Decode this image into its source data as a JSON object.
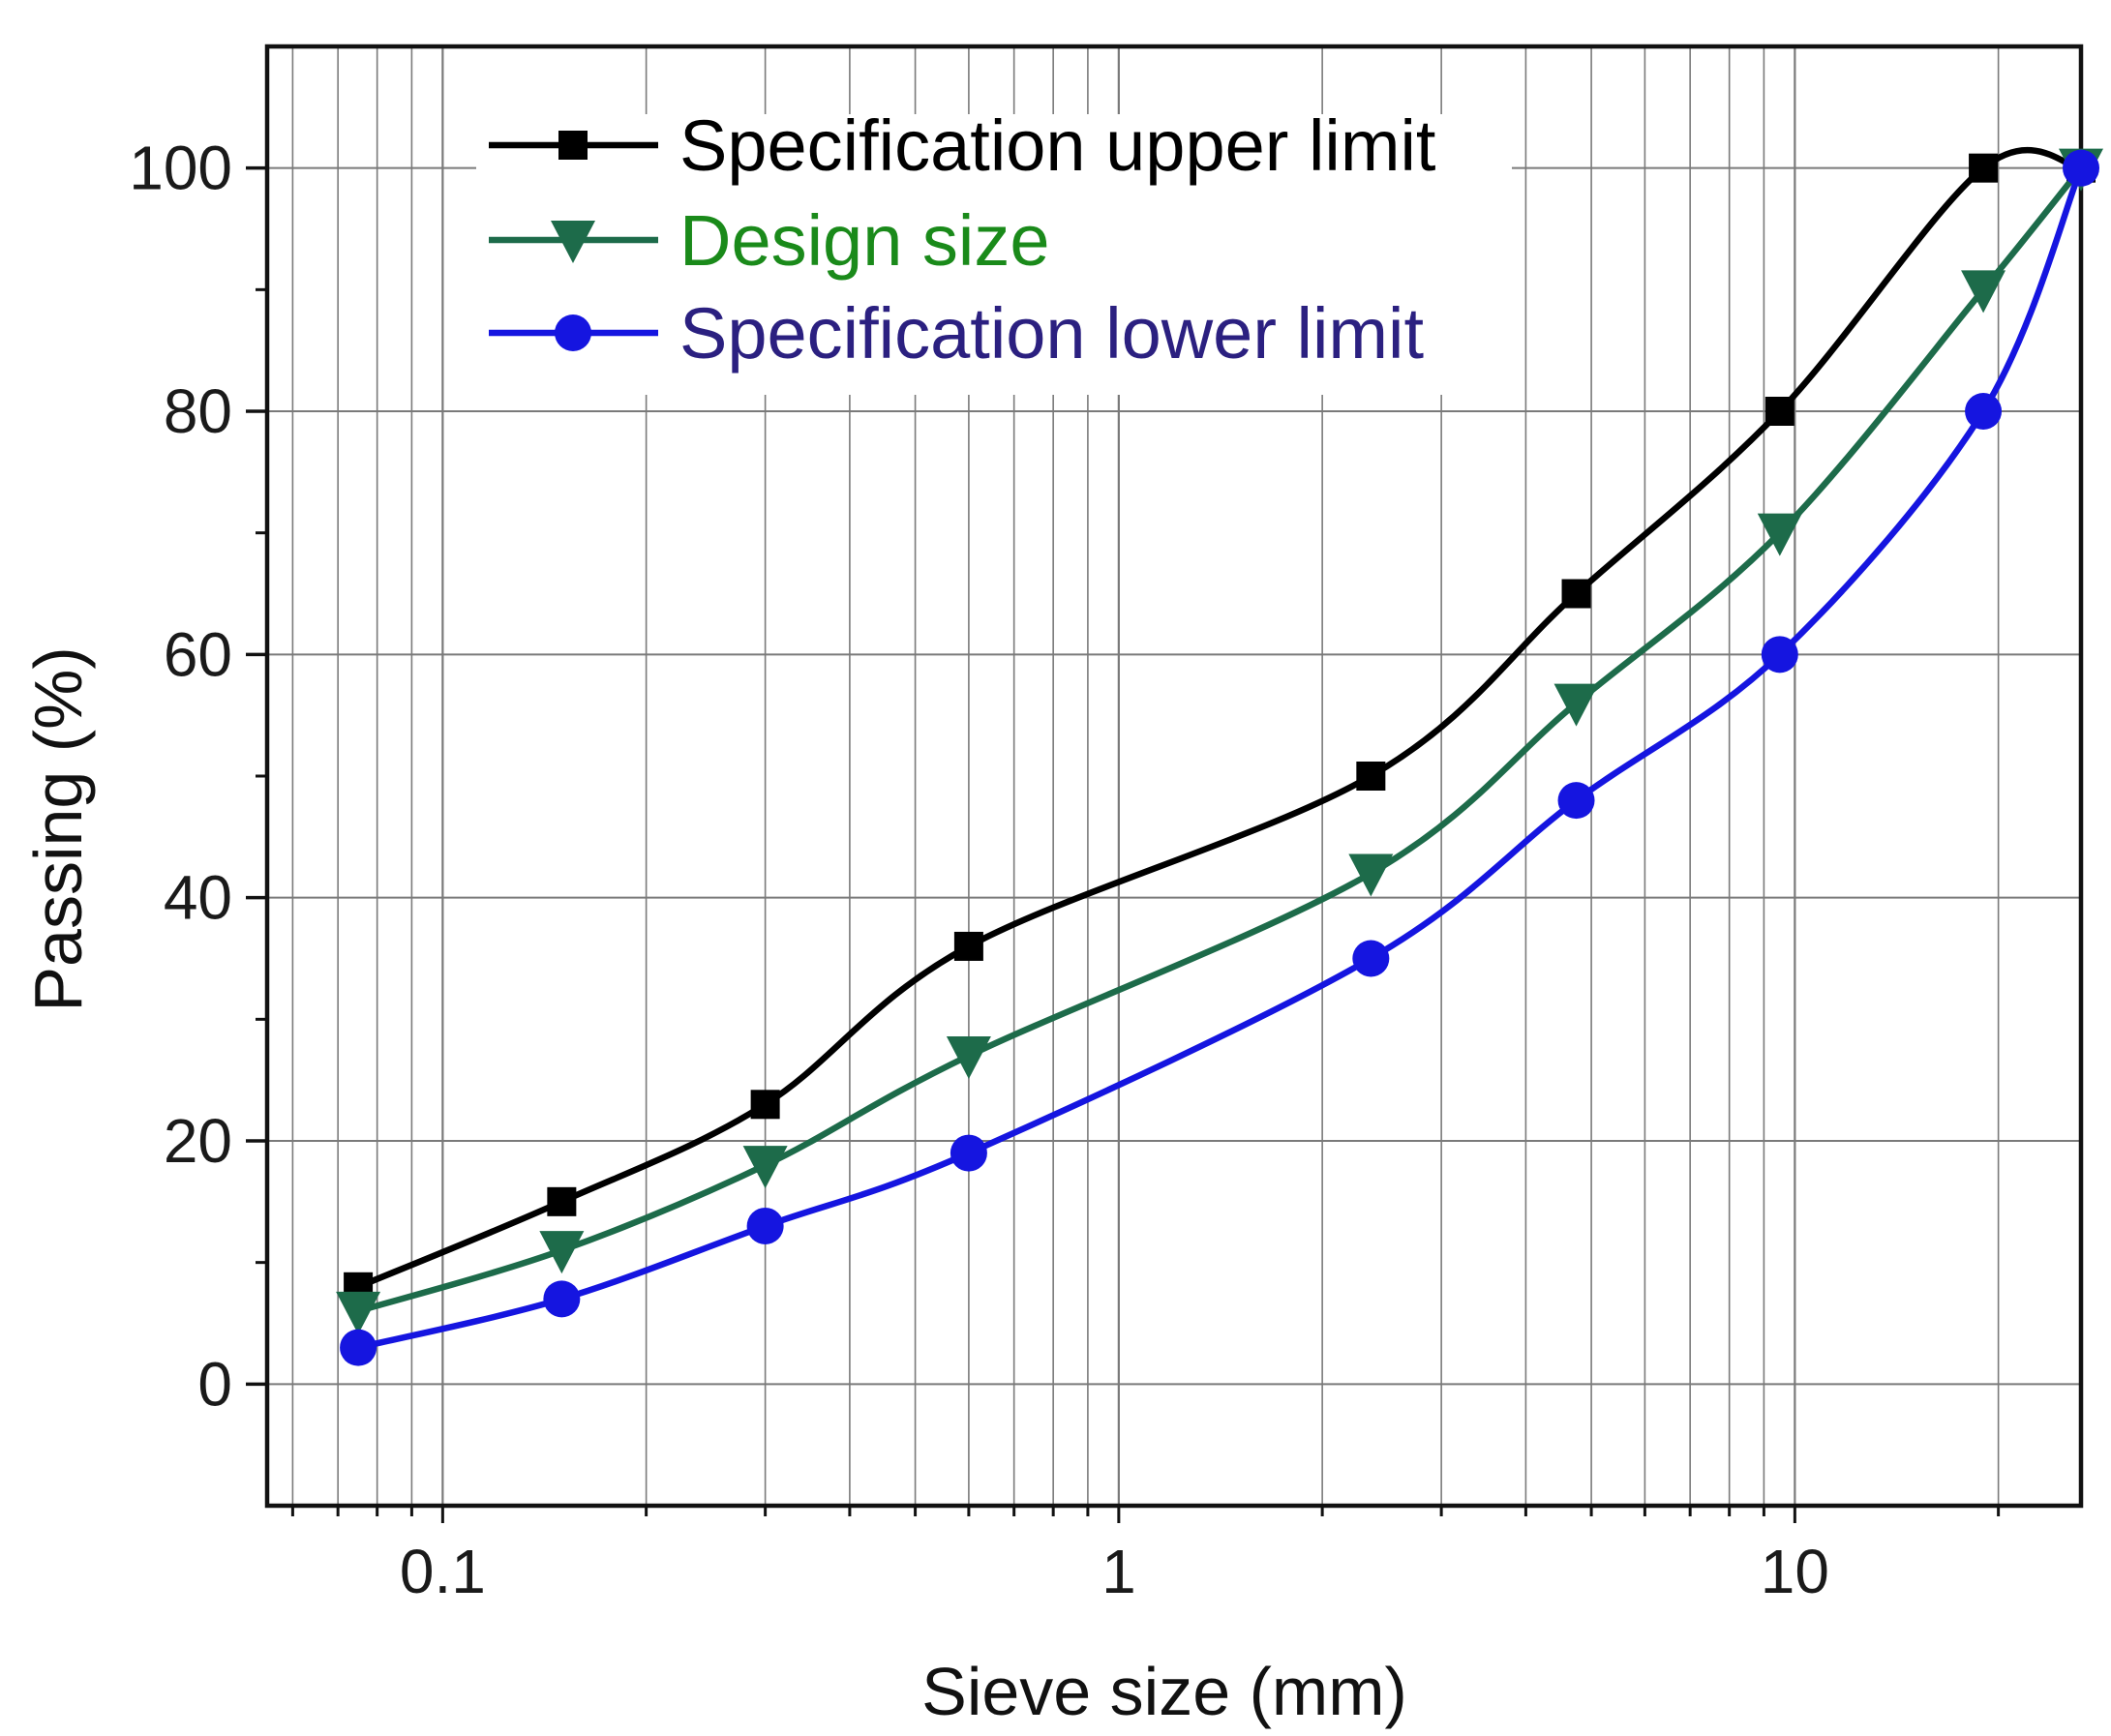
{
  "chart_data": {
    "type": "line",
    "title": "",
    "xlabel": "Sieve size (mm)",
    "ylabel": "Passing (%)",
    "xscale": "log",
    "xlim": [
      0.055,
      26.5
    ],
    "ylim": [
      -10,
      110
    ],
    "grid": true,
    "x_ticks": [
      {
        "value": 0.1,
        "label": "0.1"
      },
      {
        "value": 1,
        "label": "1"
      },
      {
        "value": 10,
        "label": "10"
      }
    ],
    "y_ticks": [
      {
        "value": 0,
        "label": "0"
      },
      {
        "value": 20,
        "label": "20"
      },
      {
        "value": 40,
        "label": "40"
      },
      {
        "value": 60,
        "label": "60"
      },
      {
        "value": 80,
        "label": "80"
      },
      {
        "value": 100,
        "label": "100"
      }
    ],
    "y_minor_ticks": [
      10,
      30,
      50,
      70,
      90
    ],
    "legend_position": "top-left",
    "x": [
      0.075,
      0.15,
      0.3,
      0.6,
      2.36,
      4.75,
      9.5,
      19,
      26.5
    ],
    "series": [
      {
        "name": "Specification upper limit",
        "color": "#000000",
        "marker": "square",
        "values": [
          8,
          15,
          23,
          36,
          50,
          65,
          80,
          100,
          100
        ]
      },
      {
        "name": " Design size",
        "color": "#1d6b4a",
        "text_color": "#1a8a1a",
        "marker": "triangle-down",
        "values": [
          6,
          11,
          18,
          27,
          42,
          56,
          70,
          90,
          100
        ]
      },
      {
        "name": "Specification lower limit",
        "color": "#1515e0",
        "text_color": "#2b2080",
        "marker": "circle",
        "values": [
          3,
          7,
          13,
          19,
          35,
          48,
          60,
          80,
          100
        ]
      }
    ]
  }
}
